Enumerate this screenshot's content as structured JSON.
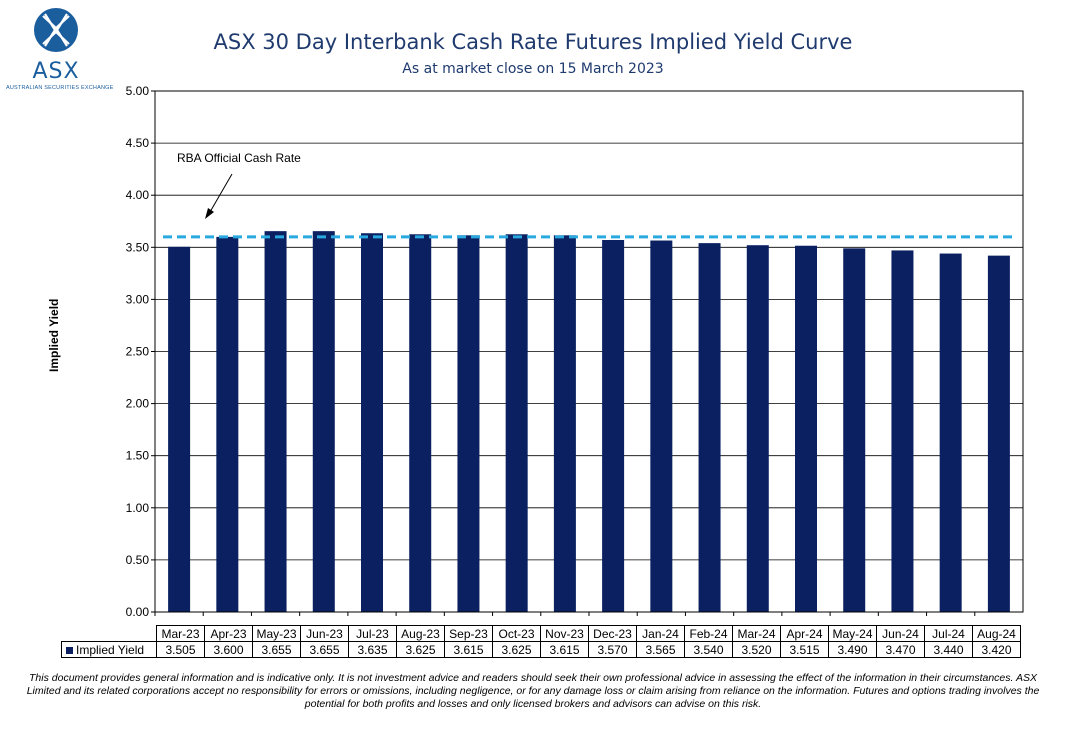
{
  "logo": {
    "word": "ASX",
    "subtitle": "AUSTRALIAN SECURITIES EXCHANGE"
  },
  "header": {
    "title": "ASX 30 Day Interbank Cash Rate Futures Implied Yield Curve",
    "subtitle": "As at market close on 15 March 2023"
  },
  "colors": {
    "bar": "#0a2061",
    "reference_line": "#29a9e0",
    "title": "#1f3a6e",
    "logo": "#1b5e9e"
  },
  "chart_data": {
    "type": "bar",
    "categories": [
      "Mar-23",
      "Apr-23",
      "May-23",
      "Jun-23",
      "Jul-23",
      "Aug-23",
      "Sep-23",
      "Oct-23",
      "Nov-23",
      "Dec-23",
      "Jan-24",
      "Feb-24",
      "Mar-24",
      "Apr-24",
      "May-24",
      "Jun-24",
      "Jul-24",
      "Aug-24"
    ],
    "series": [
      {
        "name": "Implied Yield",
        "values": [
          3.505,
          3.6,
          3.655,
          3.655,
          3.635,
          3.625,
          3.615,
          3.625,
          3.615,
          3.57,
          3.565,
          3.54,
          3.52,
          3.515,
          3.49,
          3.47,
          3.44,
          3.42
        ]
      }
    ],
    "ylabel": "Implied Yield",
    "ylim": [
      0,
      5
    ],
    "yticks": [
      "0.00",
      "0.50",
      "1.00",
      "1.50",
      "2.00",
      "2.50",
      "3.00",
      "3.50",
      "4.00",
      "4.50",
      "5.00"
    ],
    "grid": true,
    "legend": "data-table-below",
    "reference_line": {
      "label": "RBA Official Cash Rate",
      "value": 3.6
    },
    "data_table_values": [
      "3.505",
      "3.600",
      "3.655",
      "3.655",
      "3.635",
      "3.625",
      "3.615",
      "3.625",
      "3.615",
      "3.570",
      "3.565",
      "3.540",
      "3.520",
      "3.515",
      "3.490",
      "3.470",
      "3.440",
      "3.420"
    ]
  },
  "disclaimer": "This document provides general information and is indicative only. It is not investment advice and readers should seek their own professional advice in assessing the effect of the information in their circumstances. ASX Limited and its related corporations accept no responsibility for errors or omissions, including negligence, or for any damage loss or claim arising from reliance on the information. Futures and options trading involves the potential for both profits and losses and only licensed brokers and advisors can advise on this risk."
}
